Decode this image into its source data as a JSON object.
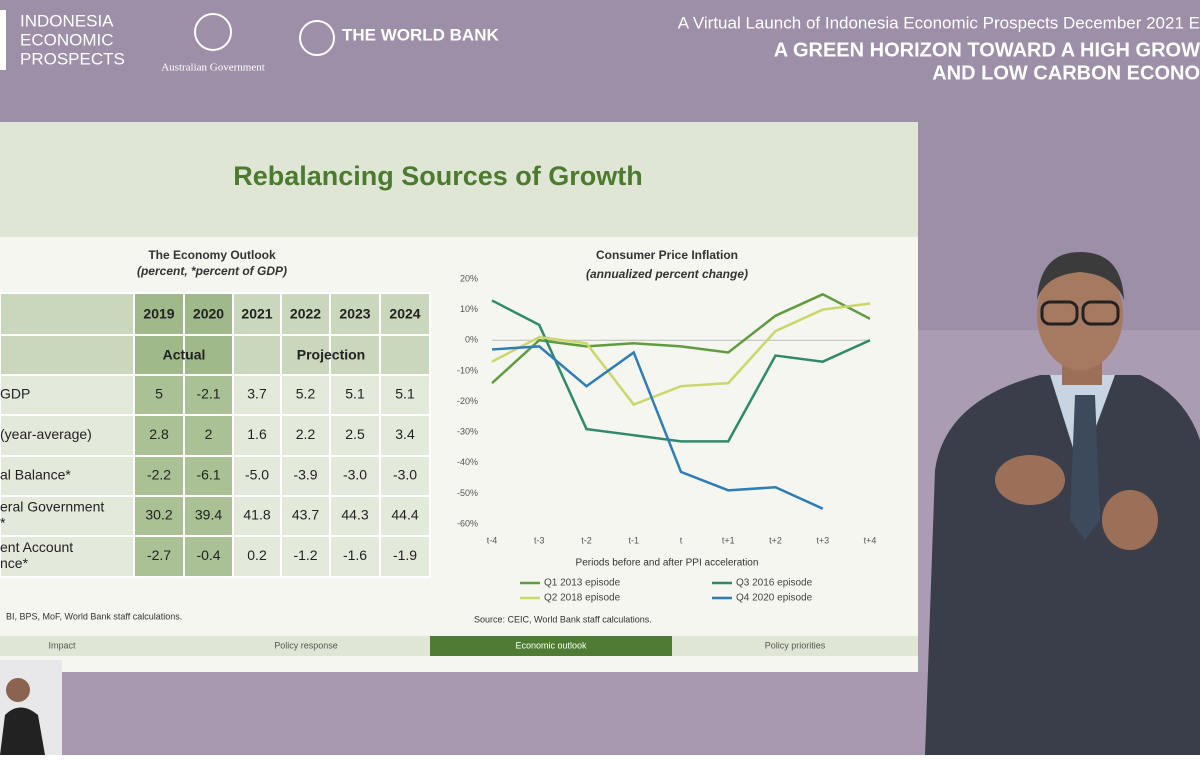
{
  "header": {
    "logo_lines": [
      "INDONESIA",
      "ECONOMIC",
      "PROSPECTS"
    ],
    "partner": "Australian Government",
    "bank": "THE WORLD BANK",
    "event": "A Virtual Launch of Indonesia Economic Prospects December 2021 E",
    "headline": [
      "A GREEN HORIZON TOWARD A HIGH GROW",
      "AND LOW CARBON ECONO"
    ]
  },
  "slide": {
    "title": "Rebalancing Sources of Growth",
    "tabs": [
      "Impact",
      "Policy response",
      "Economic outlook",
      "Policy priorities"
    ]
  },
  "table": {
    "title": "The Economy Outlook",
    "subtitle": "(percent, *percent of GDP)",
    "years": [
      "2019",
      "2020",
      "2021",
      "2022",
      "2023",
      "2024"
    ],
    "groups": [
      "Actual",
      "Projection"
    ],
    "rows": [
      {
        "label": [
          "GDP"
        ],
        "cells": [
          "5",
          "-2.1",
          "3.7",
          "5.2",
          "5.1",
          "5.1"
        ]
      },
      {
        "label": [
          "(year-average)"
        ],
        "cells": [
          "2.8",
          "2",
          "1.6",
          "2.2",
          "2.5",
          "3.4"
        ]
      },
      {
        "label": [
          "al Balance*"
        ],
        "cells": [
          "-2.2",
          "-6.1",
          "-5.0",
          "-3.9",
          "-3.0",
          "-3.0"
        ]
      },
      {
        "label": [
          "eral Government",
          "*"
        ],
        "cells": [
          "30.2",
          "39.4",
          "41.8",
          "43.7",
          "44.3",
          "44.4"
        ]
      },
      {
        "label": [
          "ent Account",
          "nce*"
        ],
        "cells": [
          "-2.7",
          "-0.4",
          "0.2",
          "-1.2",
          "-1.6",
          "-1.9"
        ]
      }
    ],
    "source": "BI, BPS, MoF, World Bank staff calculations."
  },
  "chart_data": {
    "type": "line",
    "title": "Consumer Price Inflation",
    "subtitle": "(annualized percent change)",
    "x_label": "Periods before and after PPI acceleration",
    "source": "Source: CEIC, World Bank staff calculations.",
    "categories": [
      "t-4",
      "t-3",
      "t-2",
      "t-1",
      "t",
      "t+1",
      "t+2",
      "t+3",
      "t+4"
    ],
    "ylim": [
      -60,
      20
    ],
    "yticks": [
      {
        "value": -60,
        "label": "-60%"
      },
      {
        "value": -50,
        "label": "-50%"
      },
      {
        "value": -40,
        "label": "-40%"
      },
      {
        "value": -30,
        "label": "-30%"
      },
      {
        "value": -20,
        "label": "-20%"
      },
      {
        "value": -10,
        "label": "-10%"
      },
      {
        "value": 0,
        "label": "0%"
      },
      {
        "value": 10,
        "label": "10%"
      },
      {
        "value": 20,
        "label": "20%"
      }
    ],
    "series": [
      {
        "name": "Q1 2013 episode",
        "color": "#5f9c3e",
        "values": [
          -14,
          0,
          -2,
          -1,
          -2,
          -4,
          8,
          15,
          7
        ]
      },
      {
        "name": "Q3 2016 episode",
        "color": "#2f8a6c",
        "values": [
          13,
          5,
          -29,
          -31,
          -33,
          -33,
          -5,
          -7,
          0
        ]
      },
      {
        "name": "Q2 2018 episode",
        "color": "#cbd66c",
        "values": [
          -7,
          1,
          -1,
          -21,
          -15,
          -14,
          3,
          10,
          12
        ]
      },
      {
        "name": "Q4 2020 episode",
        "color": "#2f7db5",
        "values": [
          -3,
          -2,
          -15,
          -4,
          -43,
          -49,
          -48,
          -55,
          null
        ]
      }
    ]
  }
}
